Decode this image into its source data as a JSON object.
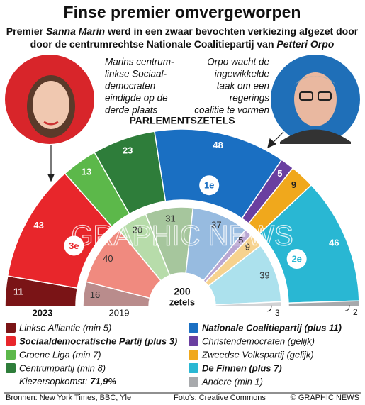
{
  "title": "Finse premier omvergeworpen",
  "subtitle": [
    [
      "Premier ",
      "Sanna Marin",
      " werd in een zwaar bevochten verkiezing afgezet door"
    ],
    [
      "door de centrumrechtse Nationale Coalitiepartij van ",
      "Petteri Orpo"
    ]
  ],
  "caption_left": [
    "Marins centrum-",
    "linkse Sociaal-",
    "democraten",
    "eindigde op de",
    "derde plaats"
  ],
  "caption_right": [
    "Orpo wacht de",
    "ingewikkelde",
    "taak om een",
    "regerings",
    "coalitie te vormen"
  ],
  "watermark": "GRAPHIC NEWS",
  "chart_data": {
    "type": "semicircle_donut",
    "title": "PARLEMENTSZETELS",
    "categories": [
      "Linkse Alliantie (min 5)",
      "Sociaaldemocratische Partij (plus 3)",
      "Groene Liga (min 7)",
      "Centrumpartij (min 8)",
      "Nationale Coalitiepartij (plus 11)",
      "Christendemocraten (gelijk)",
      "Zweedse Volkspartij (gelijk)",
      "De Finnen (plus 7)",
      "Andere (min 1)"
    ],
    "highlight": [
      false,
      true,
      false,
      false,
      true,
      false,
      false,
      true,
      false
    ],
    "ranks": [
      null,
      "3e",
      null,
      null,
      "1e",
      null,
      null,
      "2e",
      null
    ],
    "series": [
      {
        "name": "2023",
        "values": [
          11,
          43,
          13,
          23,
          48,
          5,
          9,
          46,
          2
        ],
        "colors": [
          "#7a1416",
          "#e8262b",
          "#5cb84a",
          "#2e7d3a",
          "#1a6fc2",
          "#6a3fa0",
          "#f0a81c",
          "#29b7d3",
          "#a7a9ac"
        ]
      },
      {
        "name": "2019",
        "values": [
          16,
          40,
          20,
          31,
          37,
          5,
          9,
          39,
          3
        ],
        "colors": [
          "#b98c8c",
          "#f08a7f",
          "#b7dcaa",
          "#a6c69d",
          "#97bbe0",
          "#b9a6d2",
          "#f6d28e",
          "#ace1ed",
          "#d2d3d5"
        ]
      }
    ],
    "total": 200,
    "total_label": "zetels",
    "turnout_label": "Kiezersopkomst:",
    "turnout_value": "71,9%"
  },
  "footer": {
    "sources": "Bronnen: New York Times, BBC, Yle",
    "photos": "Foto's: Creative Commons",
    "credit": "© GRAPHIC NEWS"
  }
}
